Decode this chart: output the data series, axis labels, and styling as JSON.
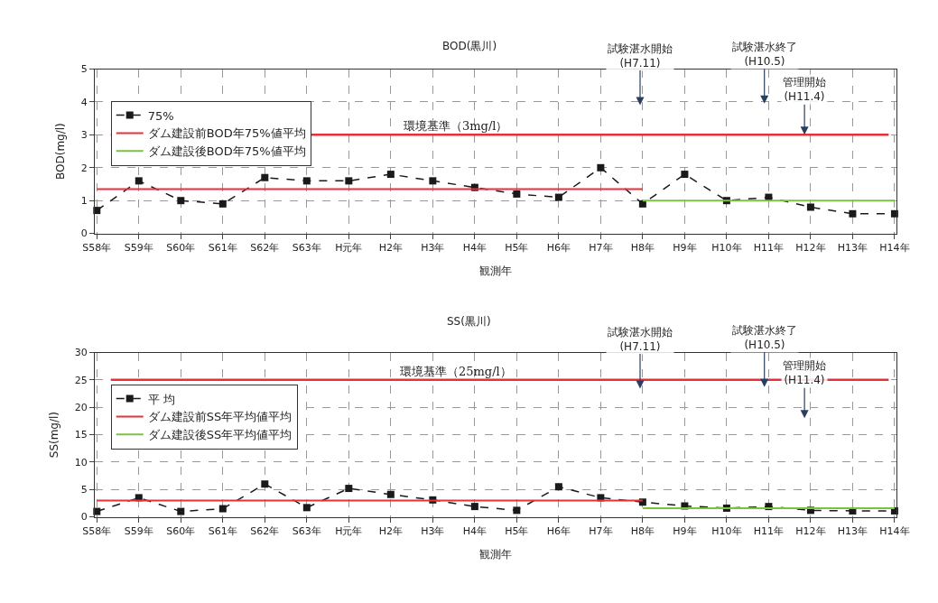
{
  "chart_data": [
    {
      "type": "line",
      "title": "BOD(黒川)",
      "xlabel": "観測年",
      "ylabel": "BOD(mg/l)",
      "categories": [
        "S58年",
        "S59年",
        "S60年",
        "S61年",
        "S62年",
        "S63年",
        "H元年",
        "H2年",
        "H3年",
        "H4年",
        "H5年",
        "H6年",
        "H7年",
        "H8年",
        "H9年",
        "H10年",
        "H11年",
        "H12年",
        "H13年",
        "H14年"
      ],
      "series": [
        {
          "name": "75%",
          "color": "#1a1a1a",
          "marker": "square",
          "line_style": "dashed",
          "values": [
            0.7,
            1.6,
            1.0,
            0.9,
            1.7,
            1.6,
            1.6,
            1.8,
            1.6,
            1.4,
            1.2,
            1.1,
            2.0,
            0.9,
            1.8,
            1.0,
            1.1,
            0.8,
            0.6,
            0.6
          ]
        },
        {
          "name": "ダム建設前BOD年75%値平均",
          "color": "#e8303a",
          "line_style": "solid",
          "values": [
            1.35,
            1.35,
            1.35,
            1.35,
            1.35,
            1.35,
            1.35,
            1.35,
            1.35,
            1.35,
            1.35,
            1.35,
            1.35,
            1.35,
            null,
            null,
            null,
            null,
            null,
            null
          ]
        },
        {
          "name": "ダム建設後BOD年75%値平均",
          "color": "#7cc242",
          "line_style": "solid",
          "values": [
            null,
            null,
            null,
            null,
            null,
            null,
            null,
            null,
            null,
            null,
            null,
            null,
            null,
            1.0,
            1.0,
            1.0,
            1.0,
            1.0,
            1.0,
            1.0
          ]
        }
      ],
      "ylim": [
        0,
        5
      ],
      "yticks": [
        0,
        1,
        2,
        3,
        4,
        5
      ],
      "grid": true,
      "legend": "top left",
      "ref_lines": [
        {
          "axis": "y",
          "value": 3,
          "label": "環境基準（3mg/l）",
          "color": "#e8303a"
        }
      ],
      "annotations": [
        "試験湛水開始\n(H7.11)",
        "試験湛水終了\n(H10.5)",
        {
          "text": "管理開始\n(H11.4)",
          "y": 3
        }
      ]
    },
    {
      "type": "line",
      "title": "SS(黒川)",
      "xlabel": "観測年",
      "ylabel": "SS(mg/l)",
      "categories": [
        "S58年",
        "S59年",
        "S60年",
        "S61年",
        "S62年",
        "S63年",
        "H元年",
        "H2年",
        "H3年",
        "H4年",
        "H5年",
        "H6年",
        "H7年",
        "H8年",
        "H9年",
        "H10年",
        "H11年",
        "H12年",
        "H13年",
        "H14年"
      ],
      "series": [
        {
          "name": "平 均",
          "color": "#1a1a1a",
          "marker": "square",
          "line_style": "dashed",
          "values": [
            1.0,
            3.5,
            1.0,
            1.5,
            6.0,
            1.7,
            5.2,
            4.1,
            3.1,
            1.9,
            1.2,
            5.5,
            3.5,
            2.7,
            2.0,
            1.6,
            1.9,
            1.2,
            1.1,
            1.1
          ]
        },
        {
          "name": "ダム建設前SS年平均値平均",
          "color": "#e8303a",
          "line_style": "solid",
          "values": [
            3.0,
            3.0,
            3.0,
            3.0,
            3.0,
            3.0,
            3.0,
            3.0,
            3.0,
            3.0,
            3.0,
            3.0,
            3.0,
            3.0,
            null,
            null,
            null,
            null,
            null,
            null
          ]
        },
        {
          "name": "ダム建設後SS年平均値平均",
          "color": "#7cc242",
          "line_style": "solid",
          "values": [
            null,
            null,
            null,
            null,
            null,
            null,
            null,
            null,
            null,
            null,
            null,
            null,
            null,
            1.6,
            1.6,
            1.6,
            1.6,
            1.6,
            1.6,
            1.6
          ]
        }
      ],
      "ylim": [
        0,
        30
      ],
      "yticks": [
        0,
        5,
        10,
        15,
        20,
        25,
        30
      ],
      "grid": true,
      "legend": "top left",
      "ref_lines": [
        {
          "axis": "y",
          "value": 25,
          "label": "環境基準（25mg/l）",
          "color": "#e8303a"
        }
      ],
      "annotations": [
        "試験湛水開始\n(H7.11)",
        "試験湛水終了\n(H10.5)",
        "管理開始\n(H11.4)"
      ]
    }
  ]
}
